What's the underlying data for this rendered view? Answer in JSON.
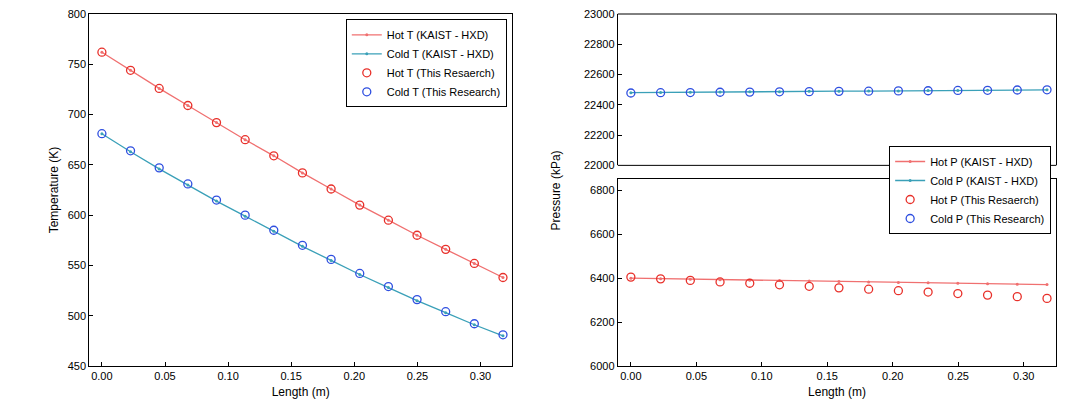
{
  "chart_data": [
    {
      "type": "line",
      "x_label": "Length (m)",
      "y_label": "Temperature (K)",
      "x": [
        0,
        0.0227,
        0.0454,
        0.0681,
        0.0908,
        0.1135,
        0.1362,
        0.1589,
        0.1816,
        0.2043,
        0.227,
        0.2497,
        0.2724,
        0.2951,
        0.3178
      ],
      "xlim": [
        -0.01,
        0.325
      ],
      "xticks": [
        {
          "value": 0,
          "label": "0.00"
        },
        {
          "value": 0.05,
          "label": "0.05"
        },
        {
          "value": 0.1,
          "label": "0.10"
        },
        {
          "value": 0.15,
          "label": "0.15"
        },
        {
          "value": 0.2,
          "label": "0.20"
        },
        {
          "value": 0.25,
          "label": "0.25"
        },
        {
          "value": 0.3,
          "label": "0.30"
        }
      ],
      "ylim": [
        450,
        800
      ],
      "yticks": [
        450,
        500,
        550,
        600,
        650,
        700,
        750,
        800
      ],
      "grid": false,
      "legend": "upper right",
      "series": [
        {
          "name": "Hot T (KAIST - HXD)",
          "type": "line",
          "color": "#f07070",
          "marker": "circle",
          "line_style": "solid",
          "values": [
            762,
            744,
            726,
            709,
            692,
            675,
            659,
            642,
            626,
            610,
            595,
            580,
            566,
            552,
            538
          ]
        },
        {
          "name": "Cold T (KAIST - HXD)",
          "type": "line",
          "color": "#3aa0b8",
          "marker": "circle",
          "line_style": "solid",
          "values": [
            681,
            663,
            646,
            630,
            614,
            599,
            584,
            569,
            555,
            541,
            528,
            515,
            503,
            491,
            480
          ]
        },
        {
          "name": "Hot T (This Resaerch)",
          "type": "scatter",
          "color": "#e8302a",
          "marker": "circle-open",
          "values": [
            762,
            744,
            726,
            709,
            692,
            675,
            659,
            642,
            626,
            610,
            595,
            580,
            566,
            552,
            538
          ]
        },
        {
          "name": "Cold T (This Research)",
          "type": "scatter",
          "color": "#2f4fe0",
          "marker": "circle-open",
          "values": [
            681,
            664,
            647,
            631,
            615,
            600,
            585,
            570,
            556,
            542,
            529,
            516,
            504,
            492,
            481
          ]
        }
      ]
    },
    {
      "type": "line",
      "x_label": "Length (m)",
      "y_label": "Pressure (kPa)",
      "x": [
        0,
        0.0227,
        0.0454,
        0.0681,
        0.0908,
        0.1135,
        0.1362,
        0.1589,
        0.1816,
        0.2043,
        0.227,
        0.2497,
        0.2724,
        0.2951,
        0.3178
      ],
      "xlim": [
        -0.01,
        0.325
      ],
      "xticks": [
        {
          "value": 0,
          "label": "0.00"
        },
        {
          "value": 0.05,
          "label": "0.05"
        },
        {
          "value": 0.1,
          "label": "0.10"
        },
        {
          "value": 0.15,
          "label": "0.15"
        },
        {
          "value": 0.2,
          "label": "0.20"
        },
        {
          "value": 0.25,
          "label": "0.25"
        },
        {
          "value": 0.3,
          "label": "0.30"
        }
      ],
      "ylim": [
        6000,
        6850
      ],
      "yticks": [
        6000,
        6200,
        6400,
        6600,
        6800
      ],
      "y2lim": [
        22000,
        23000
      ],
      "y2ticks": [
        22000,
        22200,
        22400,
        22600,
        22800,
        23000
      ],
      "grid": false,
      "legend": "center right",
      "series": [
        {
          "name": "Hot P (KAIST - HXD)",
          "type": "line",
          "color": "#f07070",
          "marker": "circle",
          "line_style": "solid",
          "values": [
            6400,
            6398,
            6395,
            6393,
            6391,
            6389,
            6387,
            6385,
            6383,
            6381,
            6379,
            6377,
            6375,
            6373,
            6371
          ]
        },
        {
          "name": "Cold P (KAIST - HXD)",
          "type": "line",
          "color": "#3aa0b8",
          "marker": "circle",
          "line_style": "solid",
          "axis": "y2",
          "values": [
            22480,
            22482,
            22483,
            22485,
            22486,
            22487,
            22489,
            22490,
            22491,
            22492,
            22494,
            22495,
            22496,
            22498,
            22499
          ]
        },
        {
          "name": "Hot P (This Resaerch)",
          "type": "scatter",
          "color": "#e8302a",
          "marker": "circle-open",
          "values": [
            6405,
            6397,
            6390,
            6383,
            6377,
            6370,
            6363,
            6356,
            6350,
            6343,
            6337,
            6330,
            6323,
            6316,
            6308
          ]
        },
        {
          "name": "Cold P (This Research)",
          "type": "scatter",
          "color": "#2f4fe0",
          "marker": "circle-open",
          "axis": "y2",
          "values": [
            22478,
            22480,
            22481,
            22483,
            22484,
            22486,
            22487,
            22489,
            22490,
            22492,
            22493,
            22495,
            22496,
            22498,
            22499
          ]
        }
      ]
    }
  ]
}
